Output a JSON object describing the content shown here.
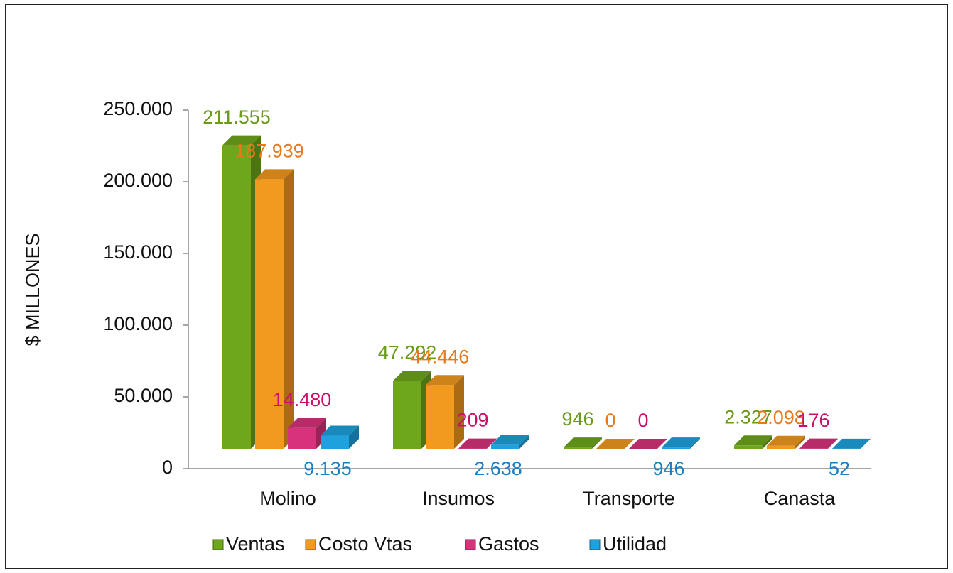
{
  "chart_data": {
    "type": "bar3d",
    "y_label": "$ MILLONES",
    "categories": [
      "Molino",
      "Insumos",
      "Transporte",
      "Canasta"
    ],
    "series": [
      {
        "name": "Ventas",
        "color": "#6ea61c",
        "label_color": "#6a9a1a",
        "values": [
          211555,
          47292,
          946,
          2327
        ],
        "value_labels": [
          "211.555",
          "47.292",
          "946",
          "2.327"
        ]
      },
      {
        "name": "Costo Vtas",
        "color": "#f29a1e",
        "label_color": "#e8781a",
        "values": [
          187939,
          44446,
          0,
          2098
        ],
        "value_labels": [
          "187.939",
          "44.446",
          "0",
          "2.098"
        ]
      },
      {
        "name": "Gastos",
        "color": "#d8327c",
        "label_color": "#c8106a",
        "values": [
          14480,
          209,
          0,
          176
        ],
        "value_labels": [
          "14.480",
          "209",
          "0",
          "176"
        ]
      },
      {
        "name": "Utilidad",
        "color": "#1ea2de",
        "label_color": "#1a80c4",
        "values": [
          9135,
          2638,
          946,
          52
        ],
        "value_labels": [
          "9.135",
          "2.638",
          "946",
          "52"
        ]
      }
    ],
    "ylim": [
      0,
      250000
    ],
    "yticks": [
      0,
      {
        "value": 50000,
        "label": "50.000"
      },
      {
        "value": 100000,
        "label": "100.000"
      },
      {
        "value": 150000,
        "label": "150.000"
      },
      {
        "value": 200000,
        "label": "200.000"
      },
      {
        "value": 250000,
        "label": "250.000"
      }
    ],
    "grid": false,
    "legend": "bottom"
  }
}
